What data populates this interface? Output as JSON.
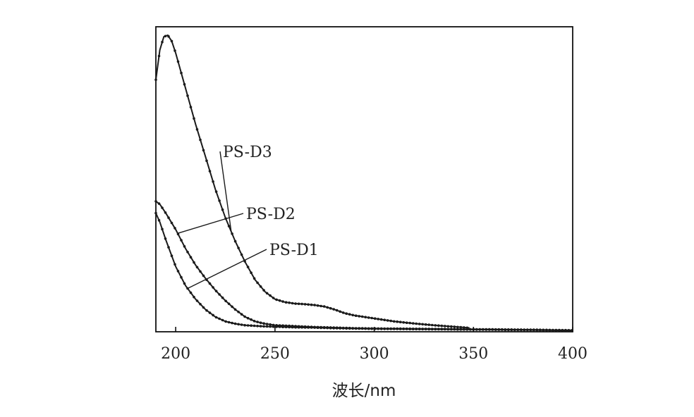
{
  "chart_data": {
    "type": "line",
    "title": "",
    "xlabel": "波长/nm",
    "ylabel": "",
    "xlim": [
      190,
      400
    ],
    "ylim": [
      0,
      1
    ],
    "x_ticks": [
      200,
      250,
      300,
      350,
      400
    ],
    "y_ticks": [],
    "grid": false,
    "legend": "none",
    "series": [
      {
        "name": "PS-D3",
        "x": [
          190,
          192,
          194,
          196,
          198,
          200,
          205,
          210,
          215,
          220,
          225,
          230,
          235,
          240,
          245,
          250,
          255,
          260,
          265,
          270,
          275,
          280,
          285,
          290,
          300,
          310,
          320,
          330,
          340,
          348
        ],
        "y": [
          0.85,
          0.95,
          0.995,
          1.0,
          0.98,
          0.94,
          0.82,
          0.7,
          0.59,
          0.48,
          0.385,
          0.305,
          0.235,
          0.175,
          0.135,
          0.11,
          0.1,
          0.095,
          0.093,
          0.09,
          0.085,
          0.075,
          0.063,
          0.055,
          0.045,
          0.035,
          0.028,
          0.022,
          0.017,
          0.013
        ]
      },
      {
        "name": "PS-D2",
        "x": [
          190,
          192,
          195,
          200,
          205,
          210,
          215,
          220,
          225,
          230,
          235,
          240,
          245,
          250,
          260,
          270,
          280,
          290,
          300,
          320,
          340,
          360,
          380,
          400
        ],
        "y": [
          0.44,
          0.43,
          0.4,
          0.345,
          0.28,
          0.225,
          0.18,
          0.14,
          0.105,
          0.075,
          0.05,
          0.035,
          0.027,
          0.022,
          0.019,
          0.016,
          0.014,
          0.012,
          0.011,
          0.01,
          0.009,
          0.008,
          0.007,
          0.005
        ]
      },
      {
        "name": "PS-D1",
        "x": [
          190,
          192,
          195,
          200,
          205,
          210,
          215,
          220,
          225,
          230,
          235,
          240,
          245,
          250,
          260,
          270,
          280,
          290,
          300,
          320,
          340,
          360,
          380,
          400
        ],
        "y": [
          0.4,
          0.37,
          0.31,
          0.22,
          0.155,
          0.11,
          0.075,
          0.05,
          0.035,
          0.027,
          0.022,
          0.02,
          0.018,
          0.017,
          0.015,
          0.014,
          0.012,
          0.011,
          0.01,
          0.009,
          0.008,
          0.007,
          0.006,
          0.004
        ]
      }
    ],
    "annotations": [
      {
        "text": "PS-D3",
        "series": "PS-D3",
        "x": 228
      },
      {
        "text": "PS-D2",
        "series": "PS-D2",
        "x": 201
      },
      {
        "text": "PS-D1",
        "series": "PS-D1",
        "x": 206
      }
    ],
    "colors": {
      "line": "#1a1a1a",
      "axis": "#111111"
    }
  }
}
